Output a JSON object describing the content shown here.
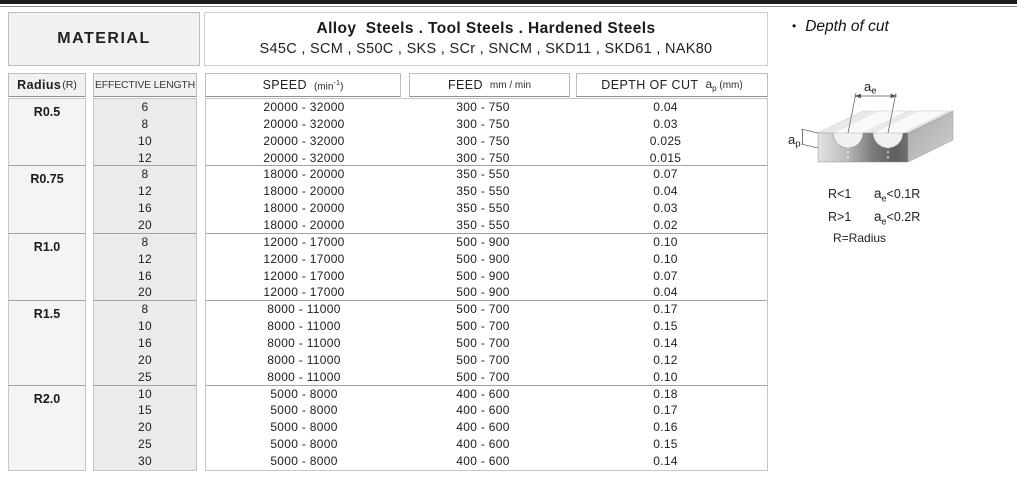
{
  "header": {
    "material_label": "MATERIAL",
    "steels_title": "Alloy  Steels . Tool Steels . Hardened Steels",
    "steels_subtitle": "S45C , SCM , S50C , SKS , SCr , SNCM , SKD11 , SKD61 , NAK80"
  },
  "columns": {
    "radius": {
      "label": "Radius",
      "suffix": "(R)"
    },
    "effective_length": {
      "label": "EFFECTIVE LENGTH"
    },
    "speed": {
      "label": "SPEED",
      "unit_open": "(min",
      "unit_sup": "-1",
      "unit_close": ")"
    },
    "feed": {
      "label": "FEED",
      "unit": "mm / min"
    },
    "depth": {
      "label": "DEPTH OF CUT",
      "a": "a",
      "a_sub": "p",
      "unit": "(mm)"
    }
  },
  "table": {
    "groups": [
      {
        "radius": "R0.5",
        "rows": [
          [
            "6",
            "20000 - 32000",
            "300 - 750",
            "0.04"
          ],
          [
            "8",
            "20000 - 32000",
            "300 - 750",
            "0.03"
          ],
          [
            "10",
            "20000 - 32000",
            "300 - 750",
            "0.025"
          ],
          [
            "12",
            "20000 - 32000",
            "300 - 750",
            "0.015"
          ]
        ]
      },
      {
        "radius": "R0.75",
        "rows": [
          [
            "8",
            "18000 - 20000",
            "350 - 550",
            "0.07"
          ],
          [
            "12",
            "18000 - 20000",
            "350 - 550",
            "0.04"
          ],
          [
            "16",
            "18000 - 20000",
            "350 - 550",
            "0.03"
          ],
          [
            "20",
            "18000 - 20000",
            "350 - 550",
            "0.02"
          ]
        ]
      },
      {
        "radius": "R1.0",
        "rows": [
          [
            "8",
            "12000 - 17000",
            "500 - 900",
            "0.10"
          ],
          [
            "12",
            "12000 - 17000",
            "500 - 900",
            "0.10"
          ],
          [
            "16",
            "12000 - 17000",
            "500 - 900",
            "0.07"
          ],
          [
            "20",
            "12000 - 17000",
            "500 - 900",
            "0.04"
          ]
        ]
      },
      {
        "radius": "R1.5",
        "rows": [
          [
            "8",
            "8000 - 11000",
            "500 - 700",
            "0.17"
          ],
          [
            "10",
            "8000 - 11000",
            "500 - 700",
            "0.15"
          ],
          [
            "16",
            "8000 - 11000",
            "500 - 700",
            "0.14"
          ],
          [
            "20",
            "8000 - 11000",
            "500 - 700",
            "0.12"
          ],
          [
            "25",
            "8000 - 11000",
            "500 - 700",
            "0.10"
          ]
        ]
      },
      {
        "radius": "R2.0",
        "rows": [
          [
            "10",
            "5000 - 8000",
            "400 - 600",
            "0.18"
          ],
          [
            "15",
            "5000 - 8000",
            "400 - 600",
            "0.17"
          ],
          [
            "20",
            "5000 - 8000",
            "400 - 600",
            "0.16"
          ],
          [
            "25",
            "5000 - 8000",
            "400 - 600",
            "0.15"
          ],
          [
            "30",
            "5000 - 8000",
            "400 - 600",
            "0.14"
          ]
        ]
      }
    ]
  },
  "side_panel": {
    "bullet": "•",
    "title": "Depth of cut",
    "diagram": {
      "ae_base": "a",
      "ae_sub": "e",
      "ap_base": "a",
      "ap_sub": "p"
    },
    "notes": [
      {
        "condition": "R<1",
        "a": "a",
        "sub": "e",
        "rule": "<0.1R"
      },
      {
        "condition": "R>1",
        "a": "a",
        "sub": "e",
        "rule": "<0.2R"
      }
    ],
    "legend": "R=Radius"
  },
  "colors": {
    "top_bar": "#1b1b1b",
    "header_shade": "#f1f1f1",
    "box_border": "#bdbdbd",
    "group_separator": "#a3a3a3"
  }
}
